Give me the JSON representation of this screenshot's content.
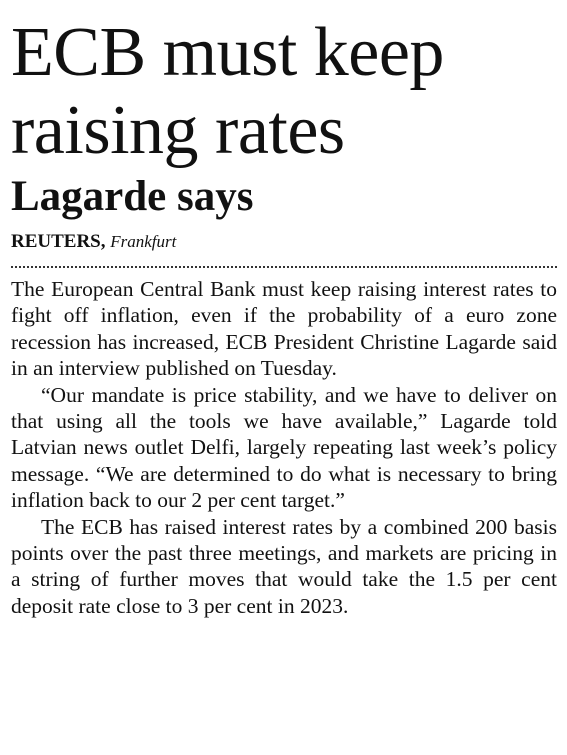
{
  "header": {
    "title": "ECB must keep raising rates",
    "subtitle": "Lagarde says"
  },
  "byline": {
    "agency": "REUTERS,",
    "location": "Frankfurt"
  },
  "body": {
    "paragraphs": [
      "The European Central Bank must keep raising interest rates to fight off inflation, even if the probability of a euro zone recession has increased, ECB President Christine Lagarde said in an interview published on Tuesday.",
      "“Our mandate is price stability, and we have to deliver on that using all the tools we have available,” Lagarde told Latvian news outlet Delfi, largely repeating last week’s policy message. “We are determined to do what is necessary to bring inflation back to our 2 per cent target.”",
      "The ECB has raised interest rates by a combined 200 basis points over the past three meetings, and markets are pricing in a string of further moves that would take the 1.5 per cent deposit rate close to 3 per cent in 2023."
    ]
  }
}
